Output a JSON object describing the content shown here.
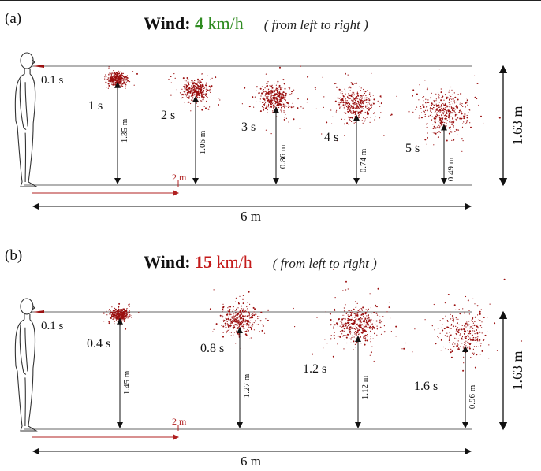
{
  "panels": [
    {
      "label": "(a)",
      "title_word": "Wind",
      "title_colon": ": ",
      "speed": "4",
      "unit": " km/h",
      "note": "( from left to right )",
      "speed_color": "#2e8b20",
      "mouth_time": "0.1 s",
      "clouds": [
        {
          "time": "1 s",
          "height": "1.35 m"
        },
        {
          "time": "2 s",
          "height": "1.06 m"
        },
        {
          "time": "3 s",
          "height": "0.86 m"
        },
        {
          "time": "4 s",
          "height": "0.74 m"
        },
        {
          "time": "5 s",
          "height": "0.49 m"
        }
      ],
      "short_dim": "2 m",
      "long_dim": "6 m",
      "person_height": "1.63 m"
    },
    {
      "label": "(b)",
      "title_word": "Wind",
      "title_colon": ": ",
      "speed": "15",
      "unit": " km/h",
      "note": "( from left to right )",
      "speed_color": "#c41a1a",
      "mouth_time": "0.1 s",
      "clouds": [
        {
          "time": "0.4 s",
          "height": "1.45 m"
        },
        {
          "time": "0.8 s",
          "height": "1.27 m"
        },
        {
          "time": "1.2 s",
          "height": "1.12 m"
        },
        {
          "time": "1.6 s",
          "height": "0.96 m"
        }
      ],
      "short_dim": "2 m",
      "long_dim": "6 m",
      "person_height": "1.63 m"
    }
  ],
  "colors": {
    "droplet": "#9b1010",
    "dim_red": "#b02020",
    "line": "#555555"
  }
}
